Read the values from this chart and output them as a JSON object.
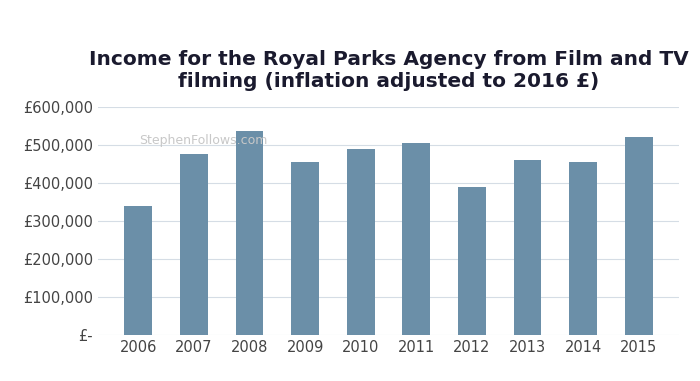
{
  "years": [
    2006,
    2007,
    2008,
    2009,
    2010,
    2011,
    2012,
    2013,
    2014,
    2015
  ],
  "values": [
    340000,
    475000,
    535000,
    455000,
    490000,
    505000,
    390000,
    460000,
    455000,
    520000
  ],
  "bar_color": "#6b8fa8",
  "title_line1": "Income for the Royal Parks Agency from Film and TV",
  "title_line2": "filming (inflation adjusted to 2016 £)",
  "watermark": "StephenFollows.com",
  "ylim": [
    0,
    600000
  ],
  "ytick_step": 100000,
  "background_color": "#ffffff",
  "grid_color": "#d5dde5",
  "tick_color": "#444444",
  "title_color": "#1a1a2e",
  "title_fontsize": 14.5,
  "axis_fontsize": 10.5,
  "watermark_fontsize": 9,
  "watermark_color": "#c8c8c8",
  "bar_width": 0.5
}
